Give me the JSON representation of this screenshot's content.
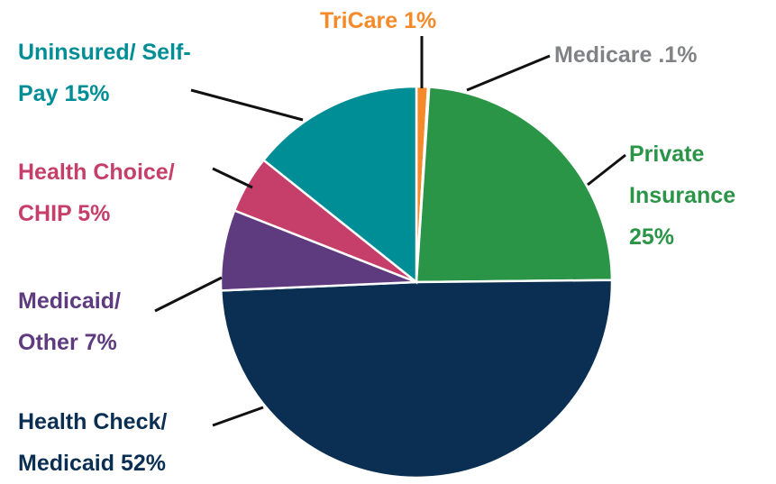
{
  "chart_data": {
    "type": "pie",
    "categories": [
      "TriCare",
      "Medicare",
      "Private Insurance",
      "Health Check/ Medicaid",
      "Medicaid/ Other",
      "Health Choice/ CHIP",
      "Uninsured/ Self-Pay"
    ],
    "values": [
      1,
      0.1,
      25,
      52,
      7,
      5,
      15
    ],
    "value_labels": [
      "1%",
      ".1%",
      "25%",
      "52%",
      "7%",
      "5%",
      "15%"
    ],
    "colors": [
      "#f58a2a",
      "#808285",
      "#2a9447",
      "#0a2f52",
      "#5e3b7e",
      "#c63e6a",
      "#008e96"
    ]
  }
}
